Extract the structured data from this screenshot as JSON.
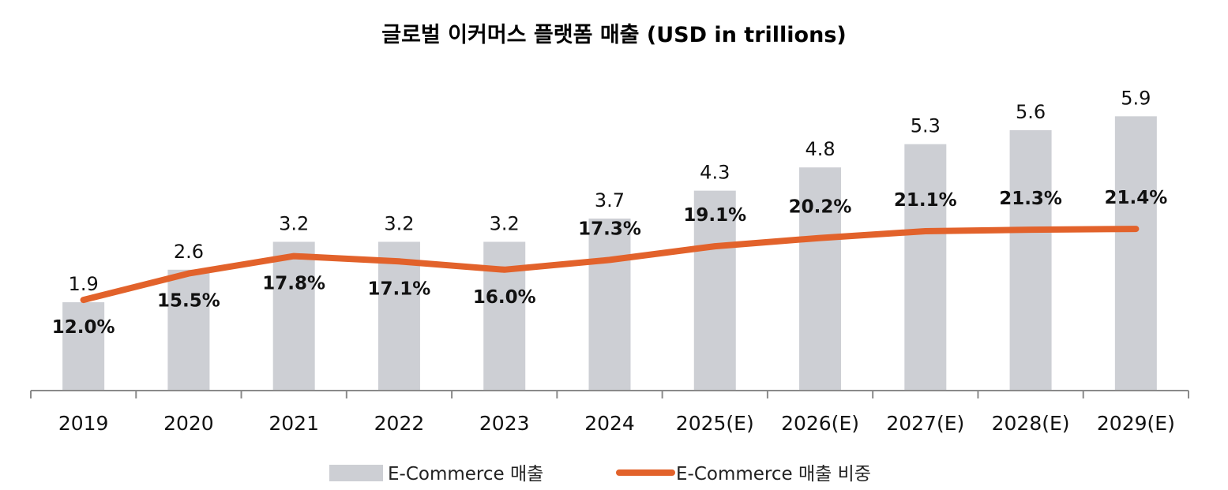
{
  "chart_data": {
    "type": "bar",
    "title": "글로벌 이커머스 플랫폼 매출 (USD in trillions)",
    "categories": [
      "2019",
      "2020",
      "2021",
      "2022",
      "2023",
      "2024",
      "2025(E)",
      "2026(E)",
      "2027(E)",
      "2028(E)",
      "2029(E)"
    ],
    "series": [
      {
        "name": "E-Commerce 매출",
        "type": "bar",
        "axis": "left",
        "values": [
          1.9,
          2.6,
          3.2,
          3.2,
          3.2,
          3.7,
          4.3,
          4.8,
          5.3,
          5.6,
          5.9
        ],
        "labels": [
          "1.9",
          "2.6",
          "3.2",
          "3.2",
          "3.2",
          "3.7",
          "4.3",
          "4.8",
          "5.3",
          "5.6",
          "5.9"
        ],
        "color": "#CDCFD4"
      },
      {
        "name": "E-Commerce 매출 비중",
        "type": "line",
        "axis": "right",
        "values": [
          12.0,
          15.5,
          17.8,
          17.1,
          16.0,
          17.3,
          19.1,
          20.2,
          21.1,
          21.3,
          21.4
        ],
        "labels": [
          "12.0%",
          "15.5%",
          "17.8%",
          "17.1%",
          "16.0%",
          "17.3%",
          "19.1%",
          "20.2%",
          "21.1%",
          "21.3%",
          "21.4%"
        ],
        "color": "#E2622B"
      }
    ],
    "ylim_left": [
      0,
      6.5
    ],
    "ylim_right": [
      0,
      40
    ],
    "grid": false,
    "legend_position": "bottom-center"
  }
}
